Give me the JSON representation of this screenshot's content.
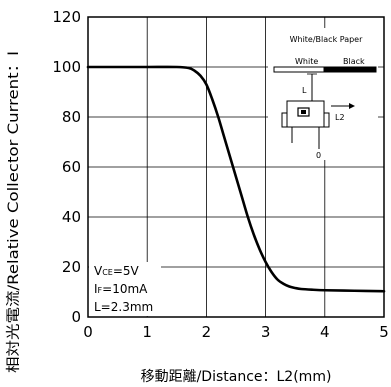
{
  "chart_data": {
    "type": "line",
    "x": [
      0,
      0.5,
      1,
      1.5,
      1.7,
      1.8,
      1.9,
      2.0,
      2.1,
      2.2,
      2.3,
      2.4,
      2.5,
      2.6,
      2.7,
      2.8,
      2.9,
      3.0,
      3.1,
      3.2,
      3.3,
      3.4,
      3.5,
      3.6,
      3.8,
      4.0,
      4.5,
      5.0
    ],
    "y": [
      100,
      100,
      100,
      100,
      99.6,
      98.5,
      96.5,
      93,
      87,
      80,
      72,
      64,
      56,
      48,
      40,
      33,
      27,
      22,
      18,
      15,
      13.3,
      12.2,
      11.6,
      11.2,
      10.9,
      10.7,
      10.5,
      10.3
    ],
    "xlabel": "移動距離/Distance：L2(mm)",
    "ylabel": "相対光電流/Relative Collector Current：I",
    "xlim": [
      0,
      5
    ],
    "ylim": [
      0,
      120
    ],
    "xticks": [
      "0",
      "1",
      "2",
      "3",
      "4",
      "5"
    ],
    "yticks": [
      "0",
      "20",
      "40",
      "60",
      "80",
      "100",
      "120"
    ],
    "grid": true,
    "annotations": {
      "conditions": [
        "V",
        "CE",
        "=5V",
        "I",
        "F",
        "=10mA",
        "L=2.3mm"
      ],
      "inset": {
        "title": "White/Black Paper",
        "white": "White",
        "black": "Black",
        "l_label": "L",
        "l2_label": "L2",
        "zero": "0"
      }
    }
  }
}
